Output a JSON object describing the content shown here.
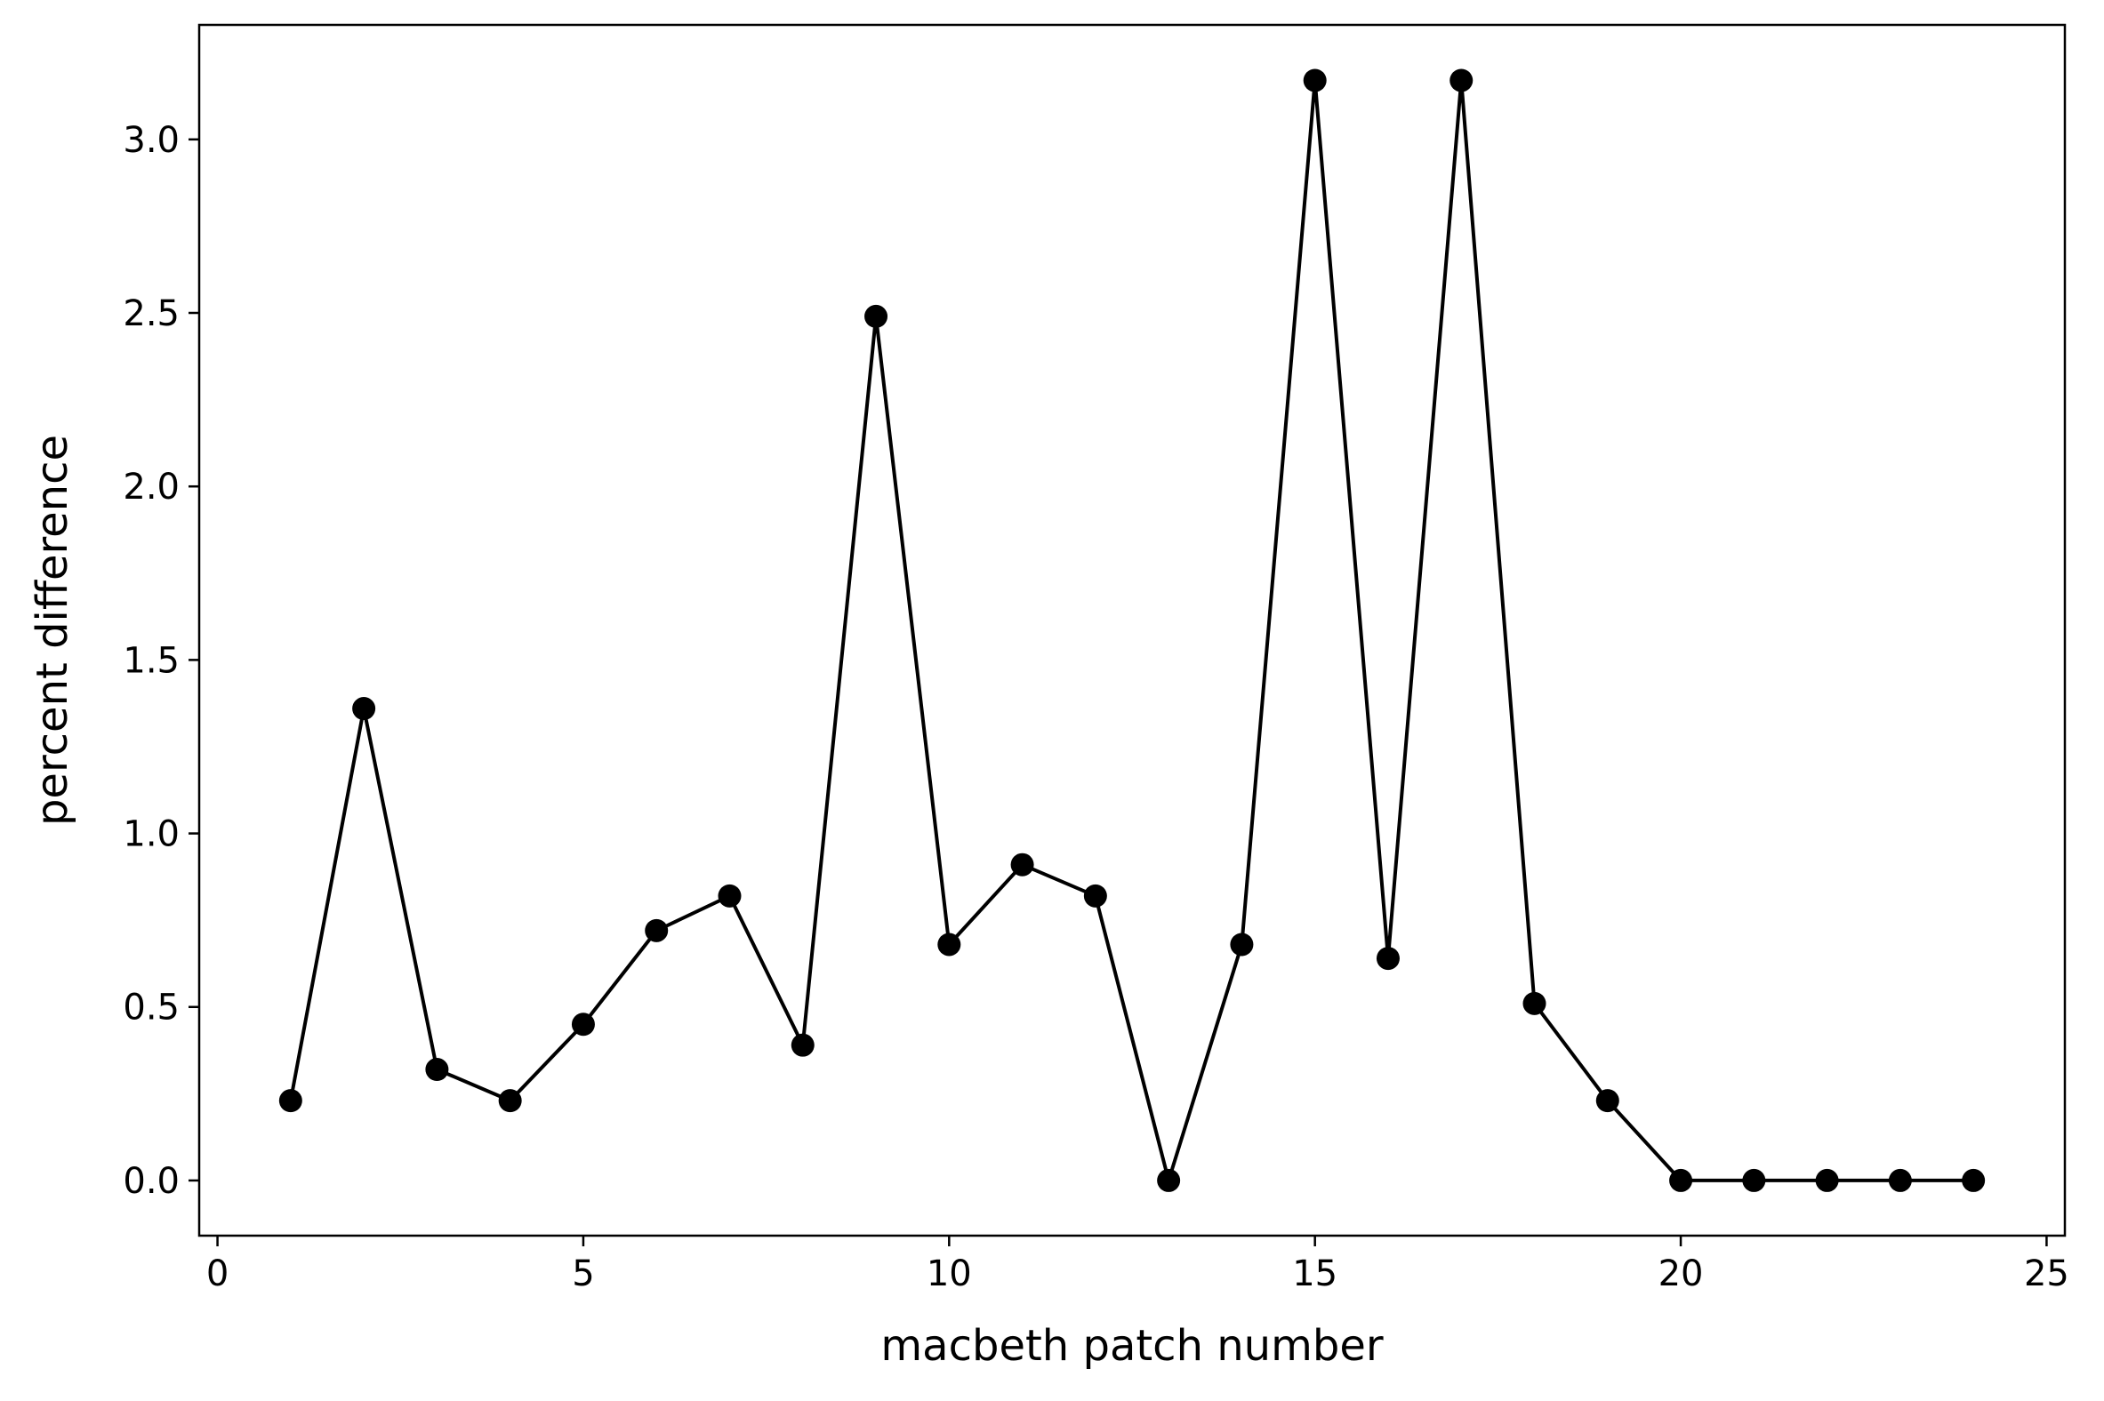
{
  "chart_data": {
    "type": "line",
    "title": "",
    "xlabel": "macbeth patch number",
    "ylabel": "percent difference",
    "xlim": [
      -0.25,
      25.25
    ],
    "ylim": [
      -0.159,
      3.33
    ],
    "xticks": [
      0,
      5,
      10,
      15,
      20,
      25
    ],
    "xtick_labels": [
      "0",
      "5",
      "10",
      "15",
      "20",
      "25"
    ],
    "yticks": [
      0.0,
      0.5,
      1.0,
      1.5,
      2.0,
      2.5,
      3.0
    ],
    "ytick_labels": [
      "0.0",
      "0.5",
      "1.0",
      "1.5",
      "2.0",
      "2.5",
      "3.0"
    ],
    "grid": false,
    "legend": "none",
    "series": [
      {
        "color": "#000000",
        "marker": "circle",
        "x": [
          1,
          2,
          3,
          4,
          5,
          6,
          7,
          8,
          9,
          10,
          11,
          12,
          13,
          14,
          15,
          16,
          17,
          18,
          19,
          20,
          21,
          22,
          23,
          24
        ],
        "values": [
          0.23,
          1.36,
          0.32,
          0.23,
          0.45,
          0.72,
          0.82,
          0.39,
          2.49,
          0.68,
          0.91,
          0.82,
          0.0,
          0.68,
          3.17,
          0.64,
          3.17,
          0.51,
          0.23,
          0.0,
          0.0,
          0.0,
          0.0,
          0.0
        ]
      }
    ]
  }
}
